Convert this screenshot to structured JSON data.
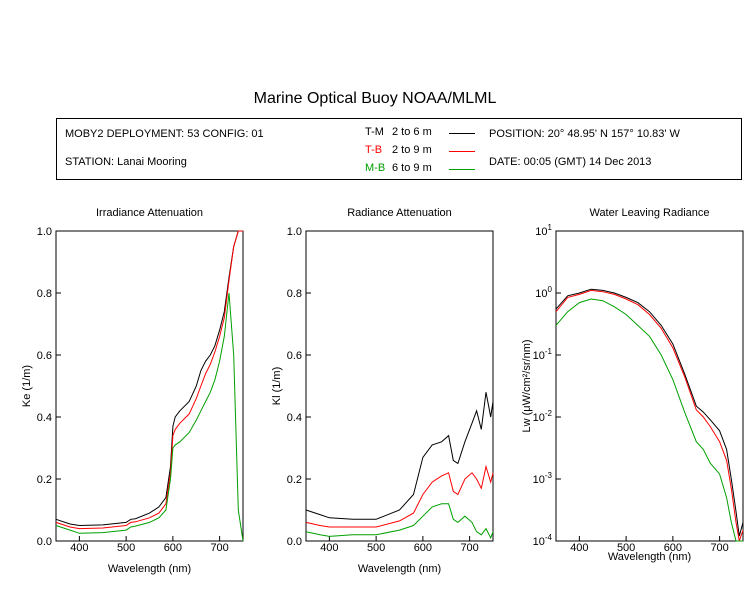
{
  "page": {
    "title": "Marine Optical Buoy NOAA/MLML",
    "info": {
      "deployment": "MOBY2 DEPLOYMENT: 53 CONFIG: 01",
      "station": "STATION: Lanai Mooring",
      "position": "POSITION: 20° 48.95' N   157° 10.83' W",
      "date": "DATE: 00:05 (GMT) 14 Dec 2013"
    },
    "legend": [
      {
        "code": "T-M",
        "range": "2 to 6  m",
        "color": "#000000"
      },
      {
        "code": "T-B",
        "range": "2 to 9  m",
        "color": "#ff0000"
      },
      {
        "code": "M-B",
        "range": "6 to 9  m",
        "color": "#00a000"
      }
    ]
  },
  "chart_data": [
    {
      "type": "line",
      "title": "Irradiance Attenuation",
      "xlabel": "Wavelength (nm)",
      "ylabel": "Ke  (1/m)",
      "xlim": [
        350,
        750
      ],
      "ylim": [
        0,
        1
      ],
      "xticks": [
        400,
        500,
        600,
        700
      ],
      "yticks": [
        "0.0",
        "0.2",
        "0.4",
        "0.6",
        "0.8",
        "1.0"
      ],
      "series": [
        {
          "name": "T-M",
          "color": "#000000",
          "x": [
            350,
            380,
            400,
            450,
            500,
            510,
            520,
            550,
            570,
            585,
            595,
            600,
            605,
            615,
            635,
            650,
            660,
            670,
            680,
            690,
            700,
            710,
            720,
            730,
            740,
            750
          ],
          "y": [
            0.07,
            0.055,
            0.05,
            0.052,
            0.06,
            0.07,
            0.072,
            0.09,
            0.11,
            0.14,
            0.24,
            0.37,
            0.4,
            0.42,
            0.45,
            0.5,
            0.55,
            0.58,
            0.6,
            0.63,
            0.68,
            0.74,
            0.85,
            0.95,
            1.0,
            1.0
          ]
        },
        {
          "name": "T-B",
          "color": "#ff0000",
          "x": [
            350,
            380,
            400,
            450,
            500,
            510,
            520,
            550,
            570,
            585,
            595,
            600,
            605,
            615,
            635,
            650,
            660,
            670,
            680,
            690,
            700,
            710,
            720,
            730,
            740,
            750
          ],
          "y": [
            0.06,
            0.045,
            0.04,
            0.042,
            0.05,
            0.06,
            0.062,
            0.075,
            0.09,
            0.12,
            0.22,
            0.34,
            0.36,
            0.38,
            0.41,
            0.46,
            0.5,
            0.54,
            0.57,
            0.61,
            0.66,
            0.72,
            0.84,
            0.95,
            1.0,
            1.0
          ]
        },
        {
          "name": "M-B",
          "color": "#00a000",
          "x": [
            350,
            380,
            400,
            450,
            500,
            510,
            520,
            550,
            570,
            585,
            595,
            600,
            605,
            615,
            635,
            650,
            660,
            670,
            680,
            690,
            700,
            710,
            720,
            730,
            740,
            750
          ],
          "y": [
            0.05,
            0.035,
            0.025,
            0.027,
            0.035,
            0.045,
            0.048,
            0.06,
            0.075,
            0.1,
            0.2,
            0.3,
            0.31,
            0.32,
            0.35,
            0.39,
            0.42,
            0.45,
            0.48,
            0.52,
            0.58,
            0.66,
            0.8,
            0.6,
            0.1,
            0.0
          ]
        }
      ]
    },
    {
      "type": "line",
      "title": "Radiance Attenuation",
      "xlabel": "Wavelength (nm)",
      "ylabel": "Kl  (1/m)",
      "xlim": [
        350,
        750
      ],
      "ylim": [
        0,
        1
      ],
      "xticks": [
        400,
        500,
        600,
        700
      ],
      "yticks": [
        "0.0",
        "0.2",
        "0.4",
        "0.6",
        "0.8",
        "1.0"
      ],
      "series": [
        {
          "name": "T-M",
          "color": "#000000",
          "x": [
            350,
            380,
            400,
            450,
            500,
            550,
            580,
            600,
            620,
            640,
            655,
            665,
            675,
            690,
            705,
            715,
            725,
            735,
            745,
            750
          ],
          "y": [
            0.1,
            0.085,
            0.075,
            0.07,
            0.07,
            0.1,
            0.15,
            0.27,
            0.31,
            0.32,
            0.34,
            0.26,
            0.25,
            0.32,
            0.38,
            0.42,
            0.36,
            0.48,
            0.4,
            0.45
          ]
        },
        {
          "name": "T-B",
          "color": "#ff0000",
          "x": [
            350,
            380,
            400,
            450,
            500,
            550,
            580,
            600,
            620,
            640,
            655,
            665,
            675,
            690,
            705,
            715,
            725,
            735,
            745,
            750
          ],
          "y": [
            0.06,
            0.05,
            0.045,
            0.045,
            0.045,
            0.065,
            0.09,
            0.15,
            0.19,
            0.21,
            0.22,
            0.16,
            0.15,
            0.2,
            0.22,
            0.2,
            0.17,
            0.24,
            0.19,
            0.22
          ]
        },
        {
          "name": "M-B",
          "color": "#00a000",
          "x": [
            350,
            380,
            400,
            450,
            500,
            550,
            580,
            600,
            620,
            640,
            655,
            665,
            675,
            690,
            705,
            715,
            725,
            735,
            745,
            750
          ],
          "y": [
            0.03,
            0.02,
            0.015,
            0.02,
            0.02,
            0.035,
            0.05,
            0.08,
            0.11,
            0.12,
            0.12,
            0.07,
            0.06,
            0.08,
            0.06,
            0.03,
            0.02,
            0.04,
            0.01,
            0.03
          ]
        }
      ]
    },
    {
      "type": "line",
      "title": "Water Leaving Radiance",
      "xlabel": "Wavelength (nm)",
      "ylabel": "Lw  (μW/cm²/sr/nm)",
      "yscale": "log",
      "xlim": [
        350,
        750
      ],
      "ylim": [
        0.0001,
        10
      ],
      "xticks": [
        400,
        500,
        600,
        700
      ],
      "yticks_exp": [
        1,
        0,
        -1,
        -2,
        -3,
        -4
      ],
      "series": [
        {
          "name": "T-M",
          "color": "#000000",
          "x": [
            350,
            375,
            400,
            425,
            450,
            475,
            500,
            525,
            550,
            575,
            600,
            625,
            650,
            665,
            680,
            700,
            715,
            725,
            735,
            742,
            750
          ],
          "y": [
            0.55,
            0.9,
            1.0,
            1.15,
            1.1,
            1.0,
            0.85,
            0.7,
            0.5,
            0.3,
            0.15,
            0.05,
            0.015,
            0.012,
            0.009,
            0.006,
            0.003,
            0.001,
            0.0003,
            0.00012,
            0.0002
          ]
        },
        {
          "name": "T-B",
          "color": "#ff0000",
          "x": [
            350,
            375,
            400,
            425,
            450,
            475,
            500,
            525,
            550,
            575,
            600,
            625,
            650,
            665,
            680,
            700,
            715,
            725,
            735,
            742,
            750
          ],
          "y": [
            0.5,
            0.85,
            0.95,
            1.1,
            1.05,
            0.95,
            0.8,
            0.65,
            0.45,
            0.27,
            0.13,
            0.045,
            0.013,
            0.01,
            0.007,
            0.004,
            0.002,
            0.0007,
            0.0002,
            0.0001,
            0.00015
          ]
        },
        {
          "name": "M-B",
          "color": "#00a000",
          "x": [
            350,
            375,
            400,
            425,
            450,
            475,
            500,
            525,
            550,
            575,
            600,
            625,
            650,
            665,
            680,
            700,
            715,
            725,
            735,
            742,
            750
          ],
          "y": [
            0.3,
            0.5,
            0.7,
            0.8,
            0.75,
            0.6,
            0.45,
            0.3,
            0.2,
            0.1,
            0.04,
            0.012,
            0.004,
            0.003,
            0.0018,
            0.0012,
            0.0005,
            0.0002,
            0.0001,
            0.0001,
            0.0001
          ]
        }
      ]
    }
  ]
}
